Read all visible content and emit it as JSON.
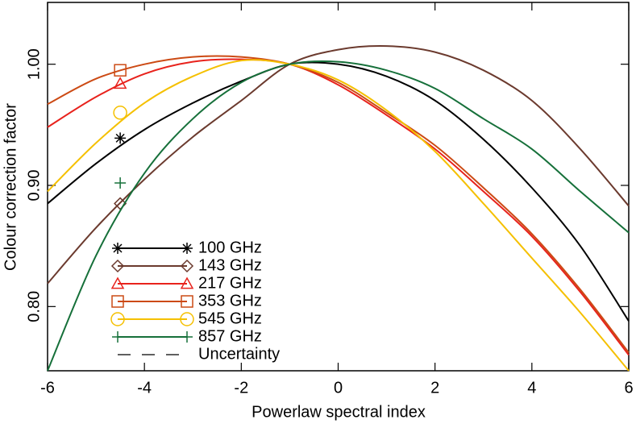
{
  "chart_data": {
    "type": "line",
    "x_label": "Powerlaw spectral index",
    "y_label": "Colour correction factor",
    "x": [
      -6,
      -5,
      -4,
      -3,
      -2,
      -1,
      0,
      1,
      2,
      3,
      4,
      5,
      6
    ],
    "xlim": [
      -6,
      6
    ],
    "xticks": [
      -6,
      -4,
      -2,
      0,
      2,
      4,
      6
    ],
    "ylim": [
      0.747,
      1.051
    ],
    "yticks": [
      {
        "value": 0.8,
        "label": "0.80"
      },
      {
        "value": 0.9,
        "label": "0.90"
      },
      {
        "value": 1.0,
        "label": "1.00"
      }
    ],
    "series": [
      {
        "name": "100 GHz",
        "color": "#000000",
        "marker": "asterisk",
        "marker_point": [
          -4.5,
          0.939
        ],
        "values": [
          0.885,
          0.918,
          0.946,
          0.968,
          0.986,
          1.0,
          1.0,
          0.99,
          0.97,
          0.938,
          0.898,
          0.85,
          0.788
        ]
      },
      {
        "name": "143 GHz",
        "color": "#6b3a2e",
        "marker": "diamond",
        "marker_point": [
          -4.5,
          0.885
        ],
        "values": [
          0.819,
          0.865,
          0.905,
          0.94,
          0.97,
          1.0,
          1.012,
          1.015,
          1.01,
          0.995,
          0.97,
          0.93,
          0.883
        ]
      },
      {
        "name": "217 GHz",
        "color": "#e8221c",
        "marker": "triangle",
        "marker_point": [
          -4.5,
          0.984
        ],
        "values": [
          0.948,
          0.973,
          0.992,
          1.002,
          1.004,
          1.0,
          0.983,
          0.958,
          0.93,
          0.895,
          0.858,
          0.812,
          0.76
        ]
      },
      {
        "name": "353 GHz",
        "color": "#cc4a14",
        "marker": "square",
        "marker_point": [
          -4.5,
          0.995
        ],
        "values": [
          0.967,
          0.988,
          1.0,
          1.006,
          1.006,
          1.0,
          0.985,
          0.96,
          0.933,
          0.898,
          0.86,
          0.814,
          0.762
        ]
      },
      {
        "name": "545 GHz",
        "color": "#f5c000",
        "marker": "circle",
        "marker_point": [
          -4.5,
          0.96
        ],
        "values": [
          0.895,
          0.935,
          0.968,
          0.99,
          1.003,
          1.0,
          0.987,
          0.962,
          0.928,
          0.885,
          0.84,
          0.795,
          0.747
        ]
      },
      {
        "name": "857 GHz",
        "color": "#16703a",
        "marker": "plus",
        "marker_point": [
          -4.5,
          0.902
        ],
        "values": [
          0.747,
          0.842,
          0.91,
          0.955,
          0.985,
          1.0,
          1.002,
          0.995,
          0.98,
          0.955,
          0.93,
          0.895,
          0.861
        ]
      }
    ],
    "uncertainty_label": "Uncertainty"
  }
}
